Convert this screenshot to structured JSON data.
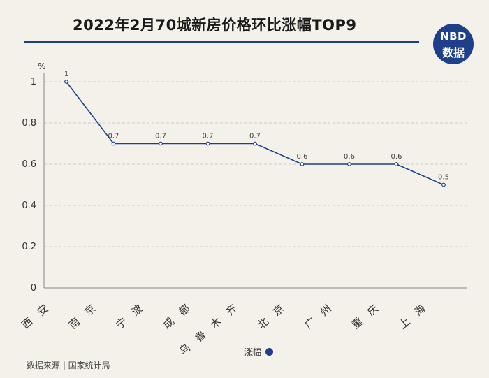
{
  "title": "2022年2月70城新房价格环比涨幅TOP9",
  "logo": {
    "line1": "NBD",
    "line2": "数据"
  },
  "source": "数据来源 | 国家统计局",
  "colors": {
    "series": "#1e3f8a",
    "grid": "#cfcac0",
    "axis": "#888888",
    "background": "#f4f1eb"
  },
  "chart_data": {
    "type": "line",
    "unit": "%",
    "categories": [
      "西安",
      "南京",
      "宁波",
      "成都",
      "乌鲁木齐",
      "北京",
      "广州",
      "重庆",
      "上海"
    ],
    "series": [
      {
        "name": "涨幅",
        "values": [
          1,
          0.7,
          0.7,
          0.7,
          0.7,
          0.6,
          0.6,
          0.6,
          0.5
        ]
      }
    ],
    "data_labels": [
      "1",
      "0.7",
      "0.7",
      "0.7",
      "0.7",
      "0.6",
      "0.6",
      "0.6",
      "0.5"
    ],
    "y_ticks": [
      0,
      0.2,
      0.4,
      0.6,
      0.8,
      1
    ],
    "y_tick_labels": [
      "0",
      "0.2",
      "0.4",
      "0.6",
      "0.8",
      "1"
    ],
    "ylim": [
      0,
      1
    ],
    "grid": true,
    "legend": "bottom-center"
  }
}
